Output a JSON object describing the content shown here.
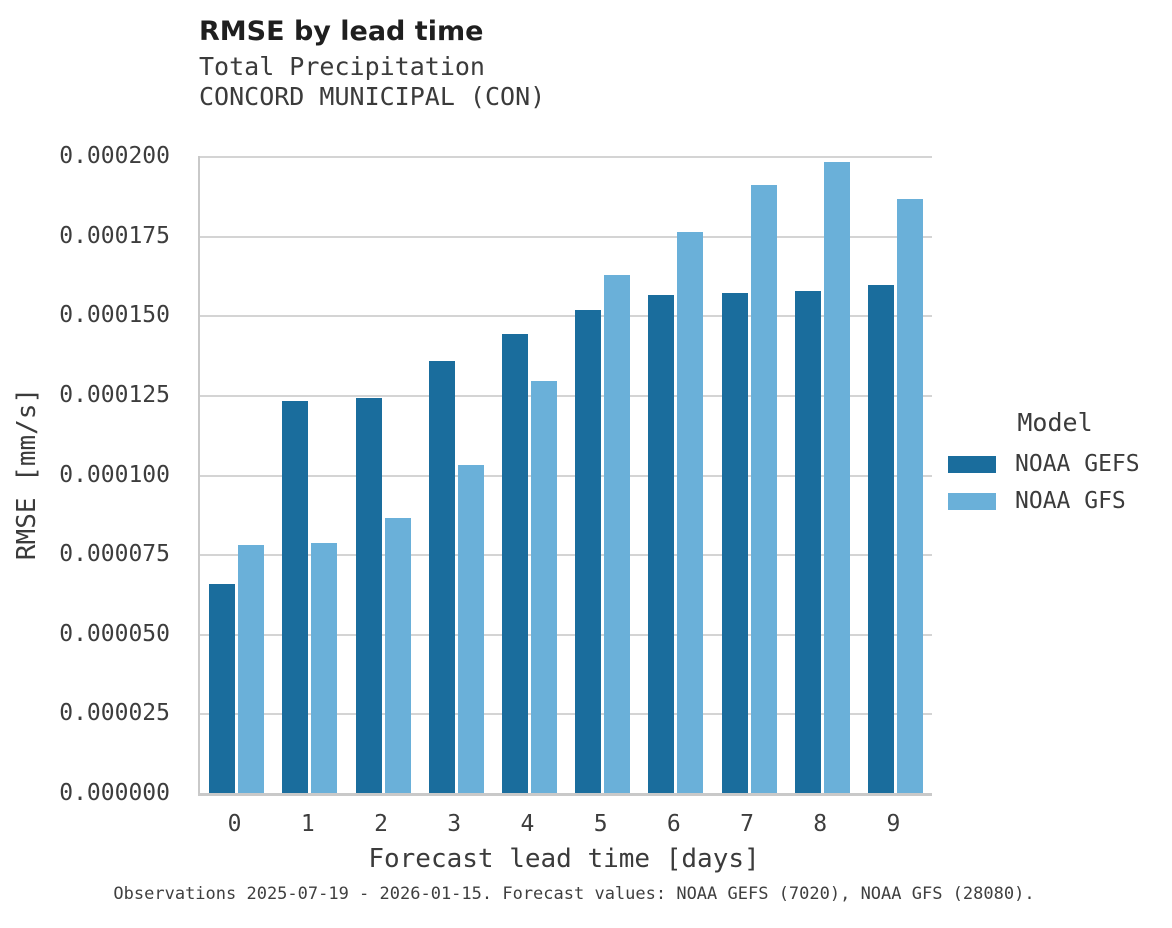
{
  "chart_data": {
    "type": "bar",
    "title": "RMSE by lead time",
    "subtitle_line1": "Total Precipitation",
    "subtitle_line2": "CONCORD MUNICIPAL (CON)",
    "xlabel": "Forecast lead time [days]",
    "ylabel": "RMSE [mm/s]",
    "categories": [
      "0",
      "1",
      "2",
      "3",
      "4",
      "5",
      "6",
      "7",
      "8",
      "9"
    ],
    "series": [
      {
        "name": "NOAA GEFS",
        "color": "#1a6d9d",
        "values": [
          6.55e-05,
          0.000123,
          0.000124,
          0.0001355,
          0.000144,
          0.0001515,
          0.0001565,
          0.000157,
          0.0001575,
          0.0001595
        ]
      },
      {
        "name": "NOAA GFS",
        "color": "#6ab0d9",
        "values": [
          7.8e-05,
          7.85e-05,
          8.65e-05,
          0.000103,
          0.0001295,
          0.0001625,
          0.000176,
          0.000191,
          0.000198,
          0.0001865
        ]
      }
    ],
    "ylim": [
      0,
      0.0002
    ],
    "yticks": [
      {
        "value": 0.0,
        "label": "0.000000"
      },
      {
        "value": 2.5e-05,
        "label": "0.000025"
      },
      {
        "value": 5e-05,
        "label": "0.000050"
      },
      {
        "value": 7.5e-05,
        "label": "0.000075"
      },
      {
        "value": 0.0001,
        "label": "0.000100"
      },
      {
        "value": 0.000125,
        "label": "0.000125"
      },
      {
        "value": 0.00015,
        "label": "0.000150"
      },
      {
        "value": 0.000175,
        "label": "0.000175"
      },
      {
        "value": 0.0002,
        "label": "0.000200"
      }
    ],
    "grid": "horizontal",
    "legend": {
      "title": "Model",
      "position": "right"
    },
    "caption": "Observations 2025-07-19 - 2026-01-15. Forecast values: NOAA GEFS (7020), NOAA GFS (28080)."
  },
  "style_colors": {
    "gridline": "#d4d4d4",
    "spine": "#c9c9c9",
    "background": "#ffffff",
    "title_text": "#1f1f1f",
    "body_text": "#3b3b3b"
  }
}
